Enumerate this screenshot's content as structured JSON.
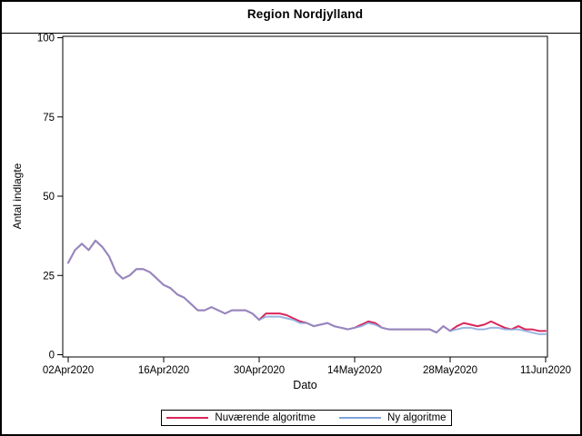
{
  "figure": {
    "background": "#ffffff",
    "border_color": "#000000"
  },
  "chart_data": {
    "type": "line",
    "title": "Region Nordjylland",
    "xlabel": "Dato",
    "ylabel": "Antal indlagte",
    "ylim": [
      0,
      100
    ],
    "yticks": [
      0,
      25,
      50,
      75,
      100
    ],
    "x_is_daily_index": true,
    "xtick_positions_days": [
      0,
      14,
      28,
      42,
      56,
      70
    ],
    "xtick_labels": [
      "02Apr2020",
      "16Apr2020",
      "30Apr2020",
      "14May2020",
      "28May2020",
      "11Jun2020"
    ],
    "grid": "off",
    "legend_position": "bottom-outside",
    "series": [
      {
        "name": "Nuværende algoritme",
        "color": "#d9265b",
        "values": [
          29,
          33,
          35,
          33,
          36,
          34,
          31,
          26,
          24,
          25,
          27,
          27,
          26,
          24,
          22,
          21,
          19,
          18,
          16,
          14,
          14,
          15,
          14,
          13,
          14,
          14,
          14,
          13,
          11,
          13,
          13,
          13,
          12.5,
          11.5,
          10.5,
          10,
          9,
          9.5,
          10,
          9,
          8.5,
          8,
          8.5,
          9.5,
          10.5,
          10,
          8.5,
          8,
          8,
          8,
          8,
          8,
          8,
          8,
          7,
          9,
          7.5,
          9,
          10,
          9.5,
          9,
          9.5,
          10.5,
          9.5,
          8.5,
          8,
          9,
          8,
          8,
          7.5,
          7.5
        ]
      },
      {
        "name": "Ny algoritme",
        "color": "#7fa3dc",
        "values": [
          29,
          33,
          35,
          33,
          36,
          34,
          31,
          26,
          24,
          25,
          27,
          27,
          26,
          24,
          22,
          21,
          19,
          18,
          16,
          14,
          14,
          15,
          14,
          13,
          14,
          14,
          14,
          13,
          11,
          12,
          12,
          12,
          11.5,
          11,
          10,
          10,
          9,
          9.5,
          10,
          9,
          8.5,
          8,
          8.5,
          9,
          10,
          9.5,
          8.5,
          8,
          8,
          8,
          8,
          8,
          8,
          8,
          7,
          9,
          7.5,
          8,
          8.5,
          8.5,
          8,
          8,
          8.5,
          8.5,
          8,
          8,
          8,
          7.5,
          7,
          6.5,
          6.5
        ]
      }
    ]
  }
}
